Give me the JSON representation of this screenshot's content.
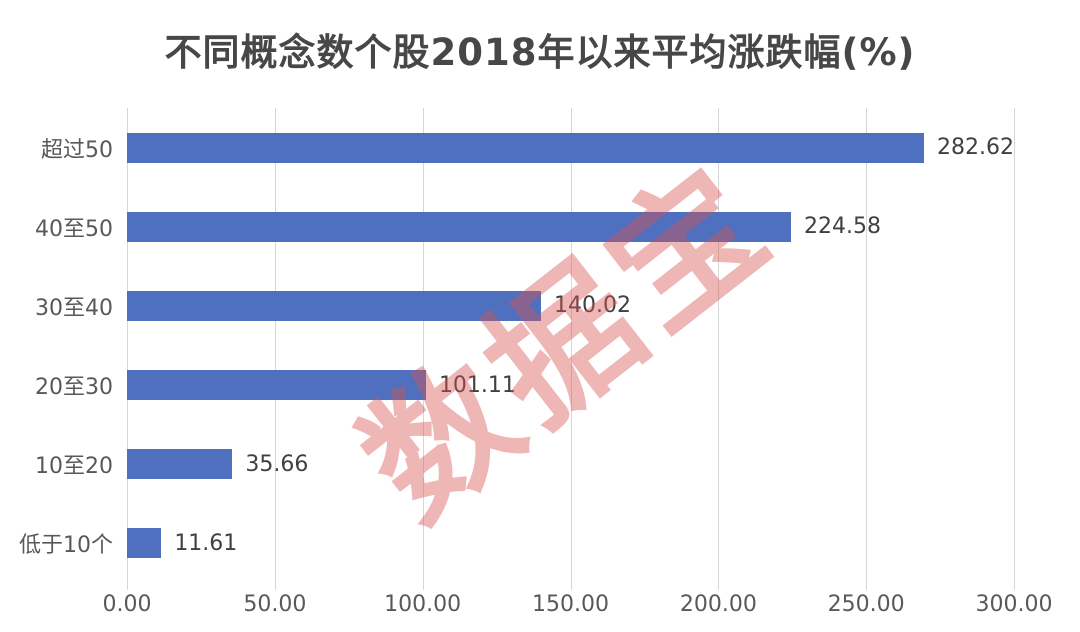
{
  "title": "不同概念数个股2018年以来平均涨跌幅(%)",
  "watermark_text": "数据宝",
  "colors": {
    "bar": "#4f70be",
    "gridline": "#d6d6d6",
    "title_text": "#474747",
    "category_text": "#595959",
    "value_text": "#404040",
    "axis_text": "#595959",
    "watermark": "rgba(217, 80, 80, 0.42)",
    "background": "#ffffff"
  },
  "chart_data": {
    "type": "bar",
    "orientation": "horizontal",
    "title": "不同概念数个股2018年以来平均涨跌幅(%)",
    "categories": [
      "超过50",
      "40至50",
      "30至40",
      "20至30",
      "10至20",
      "低于10个"
    ],
    "values": [
      282.62,
      224.58,
      140.02,
      101.11,
      35.66,
      11.61
    ],
    "value_labels": [
      "282.62",
      "224.58",
      "140.02",
      "101.11",
      "35.66",
      "11.61"
    ],
    "xlabel": "",
    "ylabel": "",
    "xlim": [
      0,
      300
    ],
    "x_ticks": [
      "0.00",
      "50.00",
      "100.00",
      "150.00",
      "200.00",
      "250.00",
      "300.00"
    ],
    "grid": "vertical-only",
    "legend": "none",
    "data_labels": "outside-end"
  }
}
